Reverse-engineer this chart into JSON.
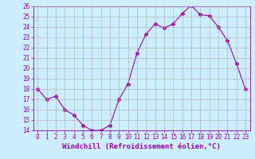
{
  "x": [
    0,
    1,
    2,
    3,
    4,
    5,
    6,
    7,
    8,
    9,
    10,
    11,
    12,
    13,
    14,
    15,
    16,
    17,
    18,
    19,
    20,
    21,
    22,
    23
  ],
  "y": [
    18,
    17,
    17.3,
    16,
    15.5,
    14.5,
    14,
    14,
    14.5,
    17,
    18.5,
    21.5,
    23.3,
    24.3,
    23.9,
    24.3,
    25.3,
    26.1,
    25.2,
    25.1,
    24.0,
    22.7,
    20.5,
    18
  ],
  "line_color": "#990099",
  "marker": "D",
  "marker_size": 2.5,
  "bg_color": "#cceeff",
  "grid_color": "#aaaaaa",
  "xlabel": "Windchill (Refroidissement éolien,°C)",
  "ylabel": "",
  "title": "",
  "ylim": [
    14,
    26
  ],
  "xlim": [
    -0.5,
    23.5
  ],
  "yticks": [
    14,
    15,
    16,
    17,
    18,
    19,
    20,
    21,
    22,
    23,
    24,
    25,
    26
  ],
  "xticks": [
    0,
    1,
    2,
    3,
    4,
    5,
    6,
    7,
    8,
    9,
    10,
    11,
    12,
    13,
    14,
    15,
    16,
    17,
    18,
    19,
    20,
    21,
    22,
    23
  ],
  "tick_fontsize": 5.5,
  "xlabel_fontsize": 6.5
}
